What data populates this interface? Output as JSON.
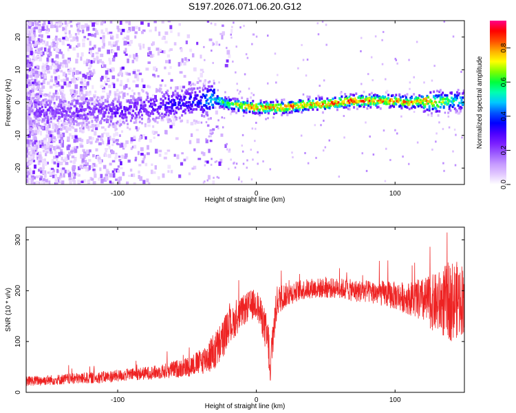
{
  "figure": {
    "title": "S197.2026.071.06.20.G12"
  },
  "colormap": {
    "stops": [
      "#ffffff",
      "#e2c8ff",
      "#c69aff",
      "#9d5dff",
      "#7b20ff",
      "#4b00ff",
      "#0000ff",
      "#0055ff",
      "#00c8ff",
      "#00ffb0",
      "#00ff3c",
      "#7dff00",
      "#ffff00",
      "#ffb000",
      "#ff4e00",
      "#ff0000",
      "#ff0088"
    ]
  },
  "chart_data": [
    {
      "type": "heatmap",
      "title": "",
      "xlabel": "Height of straight line (km)",
      "ylabel": "Frequency (Hz)",
      "xlim": [
        -166,
        150
      ],
      "ylim": [
        -25,
        25
      ],
      "xticks": [
        -100,
        0,
        100
      ],
      "yticks": [
        -20,
        -10,
        0,
        10,
        20
      ],
      "xtick_labels": [
        "-100",
        "0",
        "100"
      ],
      "ytick_labels": [
        "-20",
        "-10",
        "0",
        "10",
        "20"
      ],
      "colorbar": {
        "label": "Normalized spectral amplitude",
        "range": [
          0.0,
          0.96
        ],
        "ticks": [
          0.0,
          0.2,
          0.4,
          0.6,
          0.8
        ],
        "tick_labels": [
          "0.0",
          "0.2",
          "0.4",
          "0.6",
          "0.8"
        ]
      },
      "ridge": {
        "description_points_x": [
          -115,
          -100,
          -80,
          -60,
          -40,
          -30,
          -20,
          -10,
          0,
          10,
          20,
          30,
          40,
          50,
          60,
          70,
          80,
          90,
          100,
          110,
          120,
          130,
          140,
          150
        ],
        "frequency_hz": [
          -2.5,
          -3.0,
          -1.5,
          -0.5,
          0.5,
          1.0,
          -0.5,
          -1.0,
          -1.5,
          -1.5,
          -1.5,
          -1.0,
          -0.5,
          -0.5,
          0.0,
          0.5,
          0.5,
          0.5,
          0.5,
          0.0,
          0.5,
          0.0,
          0.5,
          0.5
        ],
        "peak_amplitude": [
          0.25,
          0.3,
          0.3,
          0.35,
          0.4,
          0.6,
          0.7,
          0.85,
          0.9,
          0.9,
          0.9,
          0.9,
          0.88,
          0.9,
          0.92,
          0.95,
          0.9,
          0.9,
          0.9,
          0.85,
          0.85,
          0.8,
          0.65,
          0.55
        ]
      }
    },
    {
      "type": "line",
      "title": "",
      "xlabel": "Height of straight line (km)",
      "ylabel": "SNR (10 * v/v)",
      "xlim": [
        -166,
        150
      ],
      "ylim": [
        0,
        325
      ],
      "xticks": [
        -100,
        0,
        100
      ],
      "yticks": [
        0,
        100,
        200,
        300
      ],
      "xtick_labels": [
        "-100",
        "0",
        "100"
      ],
      "ytick_labels": [
        "0",
        "100",
        "200",
        "300"
      ],
      "series": [
        {
          "name": "SNR",
          "color": "#ee2222",
          "x": [
            -166,
            -150,
            -130,
            -110,
            -90,
            -70,
            -50,
            -40,
            -30,
            -25,
            -20,
            -15,
            -10,
            -5,
            0,
            5,
            9,
            10,
            11,
            15,
            20,
            30,
            40,
            50,
            60,
            70,
            80,
            90,
            100,
            110,
            120,
            130,
            140,
            150
          ],
          "mean": [
            22,
            24,
            27,
            30,
            35,
            40,
            50,
            60,
            80,
            100,
            130,
            140,
            160,
            170,
            175,
            140,
            90,
            20,
            90,
            180,
            190,
            200,
            205,
            205,
            205,
            200,
            198,
            195,
            190,
            185,
            180,
            175,
            180,
            185
          ],
          "spread": [
            10,
            10,
            11,
            12,
            12,
            14,
            20,
            25,
            40,
            40,
            35,
            30,
            30,
            30,
            30,
            35,
            50,
            10,
            50,
            30,
            25,
            20,
            20,
            20,
            20,
            22,
            22,
            25,
            28,
            32,
            45,
            60,
            80,
            70
          ]
        }
      ]
    }
  ]
}
